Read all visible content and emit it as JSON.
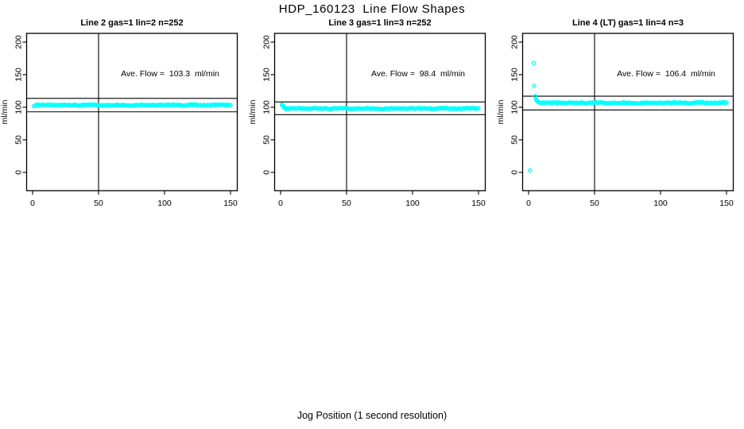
{
  "figure": {
    "title": "HDP_160123  Line Flow Shapes",
    "x_axis_label": "Jog Position (1 second resolution)",
    "y_axis_label": "ml/min",
    "point_color": "#00FFFF",
    "line_color": "#000000",
    "background_color": "#FFFFFF"
  },
  "chart_data": [
    {
      "type": "scatter",
      "title": "Line 2 gas=1 lin=2 n=252",
      "annotation": "Ave. Flow =  103.3  ml/min",
      "ave_flow": 103.3,
      "n": 252,
      "xlabel": "Jog Position (1 second resolution)",
      "ylabel": "ml/min",
      "xlim": [
        0,
        150
      ],
      "ylim": [
        0,
        200
      ],
      "x_ticks": [
        0,
        50,
        100,
        150
      ],
      "y_ticks": [
        0,
        50,
        100,
        150,
        200
      ],
      "grid": false,
      "legend": false,
      "vline_x": 50,
      "hlines": {
        "upper_limit": 113.6,
        "lower_limit": 93.0
      },
      "points": [
        [
          1,
          101.6
        ],
        [
          2,
          102.6
        ]
      ],
      "flat_segments": [
        {
          "x_from": 3,
          "x_to": 150,
          "x_step": 1,
          "value": 103.4,
          "jitter": 1.1
        }
      ]
    },
    {
      "type": "scatter",
      "title": "Line 3 gas=1 lin=3 n=252",
      "annotation": "Ave. Flow =  98.4  ml/min",
      "ave_flow": 98.4,
      "n": 252,
      "xlabel": "Jog Position (1 second resolution)",
      "ylabel": "ml/min",
      "xlim": [
        0,
        150
      ],
      "ylim": [
        0,
        200
      ],
      "x_ticks": [
        0,
        50,
        100,
        150
      ],
      "y_ticks": [
        0,
        50,
        100,
        150,
        200
      ],
      "grid": false,
      "legend": false,
      "vline_x": 50,
      "hlines": {
        "upper_limit": 108.2,
        "lower_limit": 88.6
      },
      "points": [
        [
          1,
          103.8
        ],
        [
          1.5,
          103.2
        ],
        [
          2,
          101.8
        ],
        [
          2.5,
          100.0
        ],
        [
          3,
          98.6
        ],
        [
          4,
          97.4
        ]
      ],
      "flat_segments": [
        {
          "x_from": 5,
          "x_to": 150,
          "x_step": 1,
          "value": 98.1,
          "jitter": 1.1
        }
      ]
    },
    {
      "type": "scatter",
      "title": "Line 4 (LT) gas=1 lin=4 n=3",
      "annotation": "Ave. Flow =  106.4  ml/min",
      "ave_flow": 106.4,
      "n": 3,
      "xlabel": "Jog Position (1 second resolution)",
      "ylabel": "ml/min",
      "xlim": [
        0,
        150
      ],
      "ylim": [
        0,
        200
      ],
      "x_ticks": [
        0,
        50,
        100,
        150
      ],
      "y_ticks": [
        0,
        50,
        100,
        150,
        200
      ],
      "grid": false,
      "legend": false,
      "vline_x": 50,
      "hlines": {
        "upper_limit": 117.0,
        "lower_limit": 95.8
      },
      "points": [
        [
          1,
          3
        ],
        [
          3.8,
          168
        ],
        [
          4.2,
          133
        ],
        [
          5,
          117
        ],
        [
          5.5,
          113.5
        ],
        [
          6,
          111
        ],
        [
          6.5,
          109.5
        ],
        [
          7,
          108.5
        ],
        [
          7.5,
          107.8
        ],
        [
          8,
          107.2
        ],
        [
          9,
          106.8
        ],
        [
          10,
          106.6
        ]
      ],
      "flat_segments": [
        {
          "x_from": 11,
          "x_to": 150,
          "x_step": 1,
          "value": 106.8,
          "jitter": 1.2
        }
      ]
    }
  ]
}
